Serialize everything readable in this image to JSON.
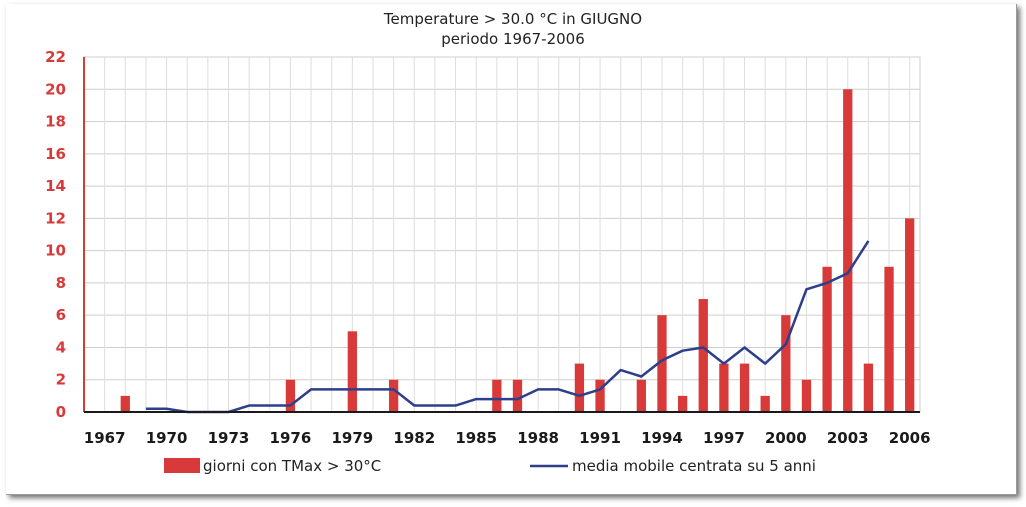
{
  "chart_data": {
    "type": "bar",
    "title": "Temperature > 30.0 °C in GIUGNO",
    "subtitle": "periodo 1967-2006",
    "xlabel": "",
    "ylabel": "",
    "ylim": [
      0,
      22
    ],
    "yticks": [
      "0",
      "2",
      "4",
      "6",
      "8",
      "10",
      "12",
      "14",
      "16",
      "18",
      "20",
      "22"
    ],
    "xticks": [
      "1967",
      "1970",
      "1973",
      "1976",
      "1979",
      "1982",
      "1985",
      "1988",
      "1991",
      "1994",
      "1997",
      "2000",
      "2003",
      "2006"
    ],
    "grid": true,
    "legend_position": "bottom",
    "x": [
      1967,
      1968,
      1969,
      1970,
      1971,
      1972,
      1973,
      1974,
      1975,
      1976,
      1977,
      1978,
      1979,
      1980,
      1981,
      1982,
      1983,
      1984,
      1985,
      1986,
      1987,
      1988,
      1989,
      1990,
      1991,
      1992,
      1993,
      1994,
      1995,
      1996,
      1997,
      1998,
      1999,
      2000,
      2001,
      2002,
      2003,
      2004,
      2005,
      2006
    ],
    "series": [
      {
        "name": "giorni con TMax > 30°C",
        "kind": "bar",
        "color": "#d83a3a",
        "values": [
          0,
          1,
          0,
          0,
          0,
          0,
          0,
          0,
          0,
          2,
          0,
          0,
          5,
          0,
          2,
          0,
          0,
          0,
          0,
          2,
          2,
          0,
          0,
          3,
          2,
          0,
          2,
          6,
          1,
          7,
          3,
          3,
          1,
          6,
          2,
          9,
          20,
          3,
          9,
          12
        ]
      },
      {
        "name": "media mobile centrata su 5 anni",
        "kind": "line",
        "color": "#2d3f8a",
        "x": [
          1969,
          1970,
          1971,
          1972,
          1973,
          1974,
          1975,
          1976,
          1977,
          1978,
          1979,
          1980,
          1981,
          1982,
          1983,
          1984,
          1985,
          1986,
          1987,
          1988,
          1989,
          1990,
          1991,
          1992,
          1993,
          1994,
          1995,
          1996,
          1997,
          1998,
          1999,
          2000,
          2001,
          2002,
          2003,
          2004
        ],
        "values": [
          0.2,
          0.2,
          0,
          0,
          0,
          0.4,
          0.4,
          0.4,
          1.4,
          1.4,
          1.4,
          1.4,
          1.4,
          0.4,
          0.4,
          0.4,
          0.8,
          0.8,
          0.8,
          1.4,
          1.4,
          1.0,
          1.4,
          2.6,
          2.2,
          3.2,
          3.8,
          4.0,
          3.0,
          4.0,
          3.0,
          4.2,
          7.6,
          8.0,
          8.6,
          10.6
        ]
      }
    ]
  }
}
